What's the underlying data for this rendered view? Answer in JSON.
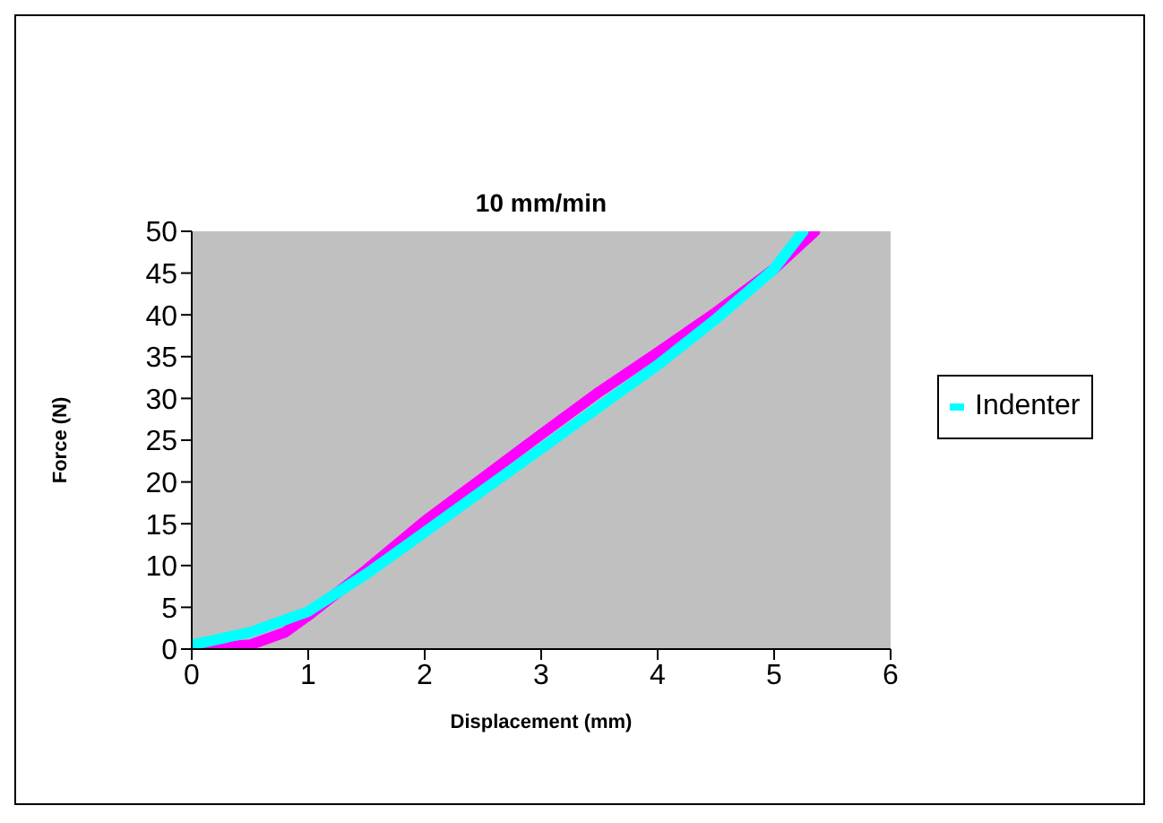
{
  "chart_data": {
    "type": "line",
    "title": "10 mm/min",
    "xlabel": "Displacement (mm)",
    "ylabel": "Force (N)",
    "xlim": [
      0,
      6
    ],
    "xticks": [
      0,
      1,
      2,
      3,
      4,
      5,
      6
    ],
    "ylim": [
      0,
      50
    ],
    "yticks": [
      0,
      5,
      10,
      15,
      20,
      25,
      30,
      35,
      40,
      45,
      50
    ],
    "grid": false,
    "legend": "right",
    "marker": "none",
    "line_style": "solid",
    "series": [
      {
        "color": "#ff00ff",
        "x": [
          0,
          0.5,
          0.8,
          1,
          1.5,
          2,
          2.5,
          3,
          3.5,
          4,
          4.5,
          5,
          5.35
        ],
        "values": [
          0,
          0.5,
          2,
          4,
          9.5,
          15.3,
          20.5,
          25.7,
          30.8,
          35.5,
          40.3,
          45.5,
          50
        ]
      },
      {
        "name": "Indenter",
        "color": "#00ffff",
        "x": [
          0,
          0.5,
          1,
          1.5,
          2,
          2.5,
          3,
          3.5,
          4,
          4.5,
          5,
          5.25
        ],
        "values": [
          0.5,
          2,
          4.5,
          9,
          14,
          19,
          24,
          29,
          34,
          39.5,
          45.5,
          50
        ]
      }
    ]
  }
}
